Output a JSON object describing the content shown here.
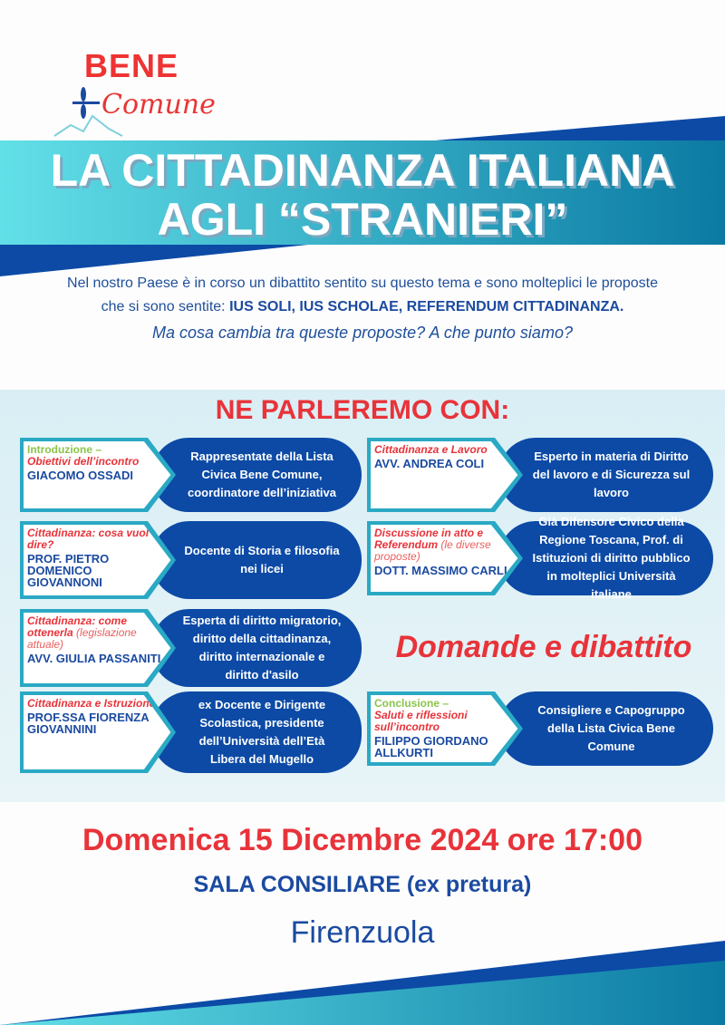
{
  "logo": {
    "line1": "BENE",
    "line2": "Comune"
  },
  "title": {
    "line1": "LA CITTADINANZA ITALIANA",
    "line2": "AGLI “STRANIERI”"
  },
  "intro": {
    "text1": "Nel nostro Paese è in corso un dibattito sentito su questo tema e sono molteplici le proposte che si sono sentite: ",
    "bold": "IUS SOLI, IUS SCHOLAE, REFERENDUM CITTADINANZA.",
    "question": "Ma cosa cambia tra queste proposte? A che punto siamo?"
  },
  "speakers_heading": "NE PARLEREMO CON:",
  "speakers": [
    {
      "topic_green": "Introduzione –",
      "topic_red": "Obiettivi dell’incontro",
      "topic_light": "",
      "name": "GIACOMO OSSADI",
      "role": "Rappresentate della Lista Civica Bene Comune, coordinatore dell’iniziativa"
    },
    {
      "topic_green": "",
      "topic_red": "Cittadinanza: cosa vuol dire?",
      "topic_light": "",
      "name": "PROF. PIETRO DOMENICO GIOVANNONI",
      "role": "Docente di Storia e filosofia nei licei"
    },
    {
      "topic_green": "",
      "topic_red": "Cittadinanza: come ottenerla",
      "topic_light": "(legislazione attuale)",
      "name": "AVV. GIULIA PASSANITI",
      "role": "Esperta di diritto migratorio, diritto della cittadinanza, diritto internazionale e diritto d'asilo"
    },
    {
      "topic_green": "",
      "topic_red": "Cittadinanza e Istruzione",
      "topic_light": "",
      "name": "PROF.SSA FIORENZA GIOVANNINI",
      "role": "ex Docente e Dirigente Scolastica, presidente dell’Università dell’Età Libera del Mugello"
    },
    {
      "topic_green": "",
      "topic_red": "Cittadinanza e Lavoro",
      "topic_light": "",
      "name": "AVV. ANDREA COLI",
      "role": "Esperto in materia di Diritto del lavoro e di Sicurezza sul lavoro"
    },
    {
      "topic_green": "",
      "topic_red": "Discussione in atto e Referendum",
      "topic_light": "(le diverse proposte)",
      "name": "DOTT. MASSIMO CARLI",
      "role": "Già Difensore Civico della Regione Toscana, Prof. di Istituzioni di diritto pubblico in molteplici Università italiane"
    },
    {
      "topic_green": "Conclusione –",
      "topic_red": "Saluti e riflessioni sull’incontro",
      "topic_light": "",
      "name": "FILIPPO GIORDANO ALLKURTI",
      "role": "Consigliere e Capogruppo della Lista Civica Bene Comune"
    }
  ],
  "debate": "Domande e dibattito",
  "event": {
    "date": "Domenica 15 Dicembre 2024 ore 17:00",
    "venue": "SALA CONSILIARE (ex pretura)",
    "city": "Firenzuola"
  },
  "colors": {
    "red": "#e8333a",
    "navy": "#0c4aa6",
    "teal": "#2aa9c4"
  }
}
